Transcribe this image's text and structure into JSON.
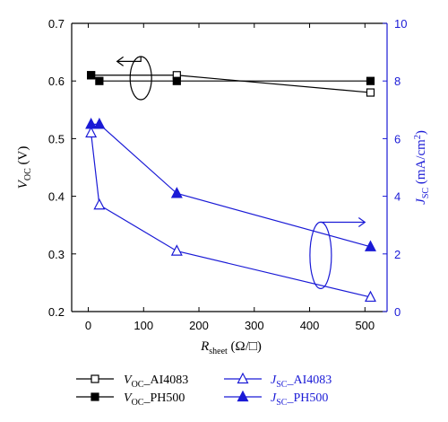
{
  "chart_data": {
    "type": "line",
    "xlabel": {
      "main": "R",
      "sub": "sheet",
      "unit": "(Ω/□)"
    },
    "ylabel_left": {
      "main": "V",
      "sub": "OC",
      "unit": "(V)"
    },
    "ylabel_right": {
      "main": "J",
      "sub": "SC",
      "unit": "(mA/cm",
      "sup": "2",
      "close": ")"
    },
    "xlim": [
      -30,
      540
    ],
    "ylim_left": [
      0.2,
      0.7
    ],
    "ylim_right": [
      0,
      10
    ],
    "xticks": [
      0,
      100,
      200,
      300,
      400,
      500
    ],
    "yticks_left": [
      0.2,
      0.3,
      0.4,
      0.5,
      0.6,
      0.7
    ],
    "yticks_right": [
      0,
      2,
      4,
      6,
      8,
      10
    ],
    "colors": {
      "voc": "#000000",
      "jsc": "#1a1ad6",
      "axis": "#000000"
    },
    "series": [
      {
        "name": "AI4083",
        "quantity": "V",
        "sub": "OC",
        "axis": "left",
        "marker": "square-open",
        "x": [
          5,
          160,
          510
        ],
        "y": [
          0.61,
          0.61,
          0.58
        ]
      },
      {
        "name": "PH500",
        "quantity": "V",
        "sub": "OC",
        "axis": "left",
        "marker": "square-filled",
        "x": [
          5,
          20,
          160,
          510
        ],
        "y": [
          0.61,
          0.6,
          0.6,
          0.6
        ]
      },
      {
        "name": "AI4083",
        "quantity": "J",
        "sub": "SC",
        "axis": "right",
        "marker": "triangle-open",
        "x": [
          5,
          20,
          160,
          510
        ],
        "y": [
          6.2,
          3.7,
          2.1,
          0.5
        ]
      },
      {
        "name": "PH500",
        "quantity": "J",
        "sub": "SC",
        "axis": "right",
        "marker": "triangle-filled",
        "x": [
          5,
          20,
          160,
          510
        ],
        "y": [
          6.5,
          6.5,
          4.1,
          2.25
        ]
      }
    ],
    "legend_placement": "bottom"
  }
}
